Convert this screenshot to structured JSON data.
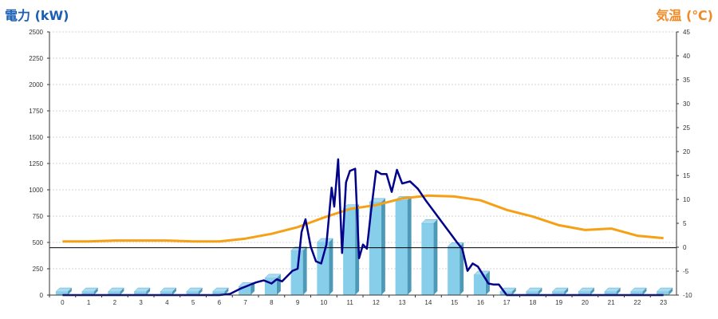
{
  "chart_data": {
    "type": "bar",
    "left_axis_title": "電力 (kW)",
    "right_axis_title": "気温 (℃)",
    "categories": [
      "0",
      "1",
      "2",
      "3",
      "4",
      "5",
      "6",
      "7",
      "8",
      "9",
      "10",
      "11",
      "12",
      "13",
      "14",
      "15",
      "16",
      "17",
      "18",
      "19",
      "20",
      "21",
      "22",
      "23"
    ],
    "left_ylim": [
      0,
      2500
    ],
    "left_ticks": [
      0,
      250,
      500,
      750,
      1000,
      1250,
      1500,
      1750,
      2000,
      2250,
      2500
    ],
    "right_ylim": [
      -10,
      45
    ],
    "right_ticks": [
      -10,
      -5,
      0,
      5,
      10,
      15,
      20,
      25,
      30,
      35,
      40,
      45
    ],
    "grid": true,
    "bars": {
      "color": "#87ceeb",
      "values": [
        30,
        30,
        30,
        30,
        30,
        30,
        30,
        80,
        160,
        420,
        500,
        820,
        880,
        900,
        680,
        460,
        190,
        30,
        30,
        30,
        30,
        30,
        30,
        30
      ]
    },
    "power_line": {
      "color": "#00008b",
      "x": [
        0,
        1,
        2,
        3,
        4,
        5,
        6,
        6.4,
        6.8,
        7.1,
        7.4,
        7.7,
        8.0,
        8.2,
        8.4,
        8.6,
        8.8,
        9.0,
        9.15,
        9.3,
        9.5,
        9.7,
        9.9,
        10.1,
        10.3,
        10.4,
        10.55,
        10.7,
        10.85,
        11.0,
        11.2,
        11.35,
        11.5,
        11.65,
        11.8,
        12.0,
        12.2,
        12.4,
        12.6,
        12.8,
        13.0,
        13.3,
        13.6,
        13.9,
        14.2,
        14.5,
        14.8,
        15.1,
        15.3,
        15.5,
        15.7,
        15.9,
        16.1,
        16.3,
        16.5,
        16.7,
        17,
        17.5,
        18,
        19,
        20,
        21,
        22,
        23
      ],
      "y": [
        0,
        0,
        0,
        0,
        0,
        0,
        0,
        10,
        60,
        90,
        120,
        140,
        110,
        150,
        130,
        180,
        230,
        250,
        600,
        720,
        460,
        320,
        300,
        480,
        1020,
        840,
        1290,
        400,
        1070,
        1180,
        1200,
        350,
        480,
        440,
        780,
        1180,
        1150,
        1150,
        980,
        1190,
        1060,
        1080,
        1010,
        900,
        800,
        700,
        600,
        500,
        440,
        230,
        300,
        270,
        190,
        110,
        100,
        100,
        0,
        0,
        0,
        0,
        0,
        0,
        0,
        0
      ]
    },
    "temp_line": {
      "color": "#f5a015",
      "x": [
        0,
        1,
        2,
        3,
        4,
        5,
        6,
        7,
        8,
        9,
        10,
        11,
        12,
        13,
        14,
        15,
        16,
        17,
        18,
        19,
        20,
        21,
        22,
        23
      ],
      "y": [
        1.2,
        1.2,
        1.4,
        1.4,
        1.4,
        1.2,
        1.2,
        1.8,
        2.8,
        4.2,
        6.2,
        8.0,
        8.8,
        10.2,
        10.8,
        10.6,
        9.8,
        7.8,
        6.4,
        4.6,
        3.6,
        3.9,
        2.4,
        1.9
      ]
    },
    "reference_line_kw": 450
  }
}
